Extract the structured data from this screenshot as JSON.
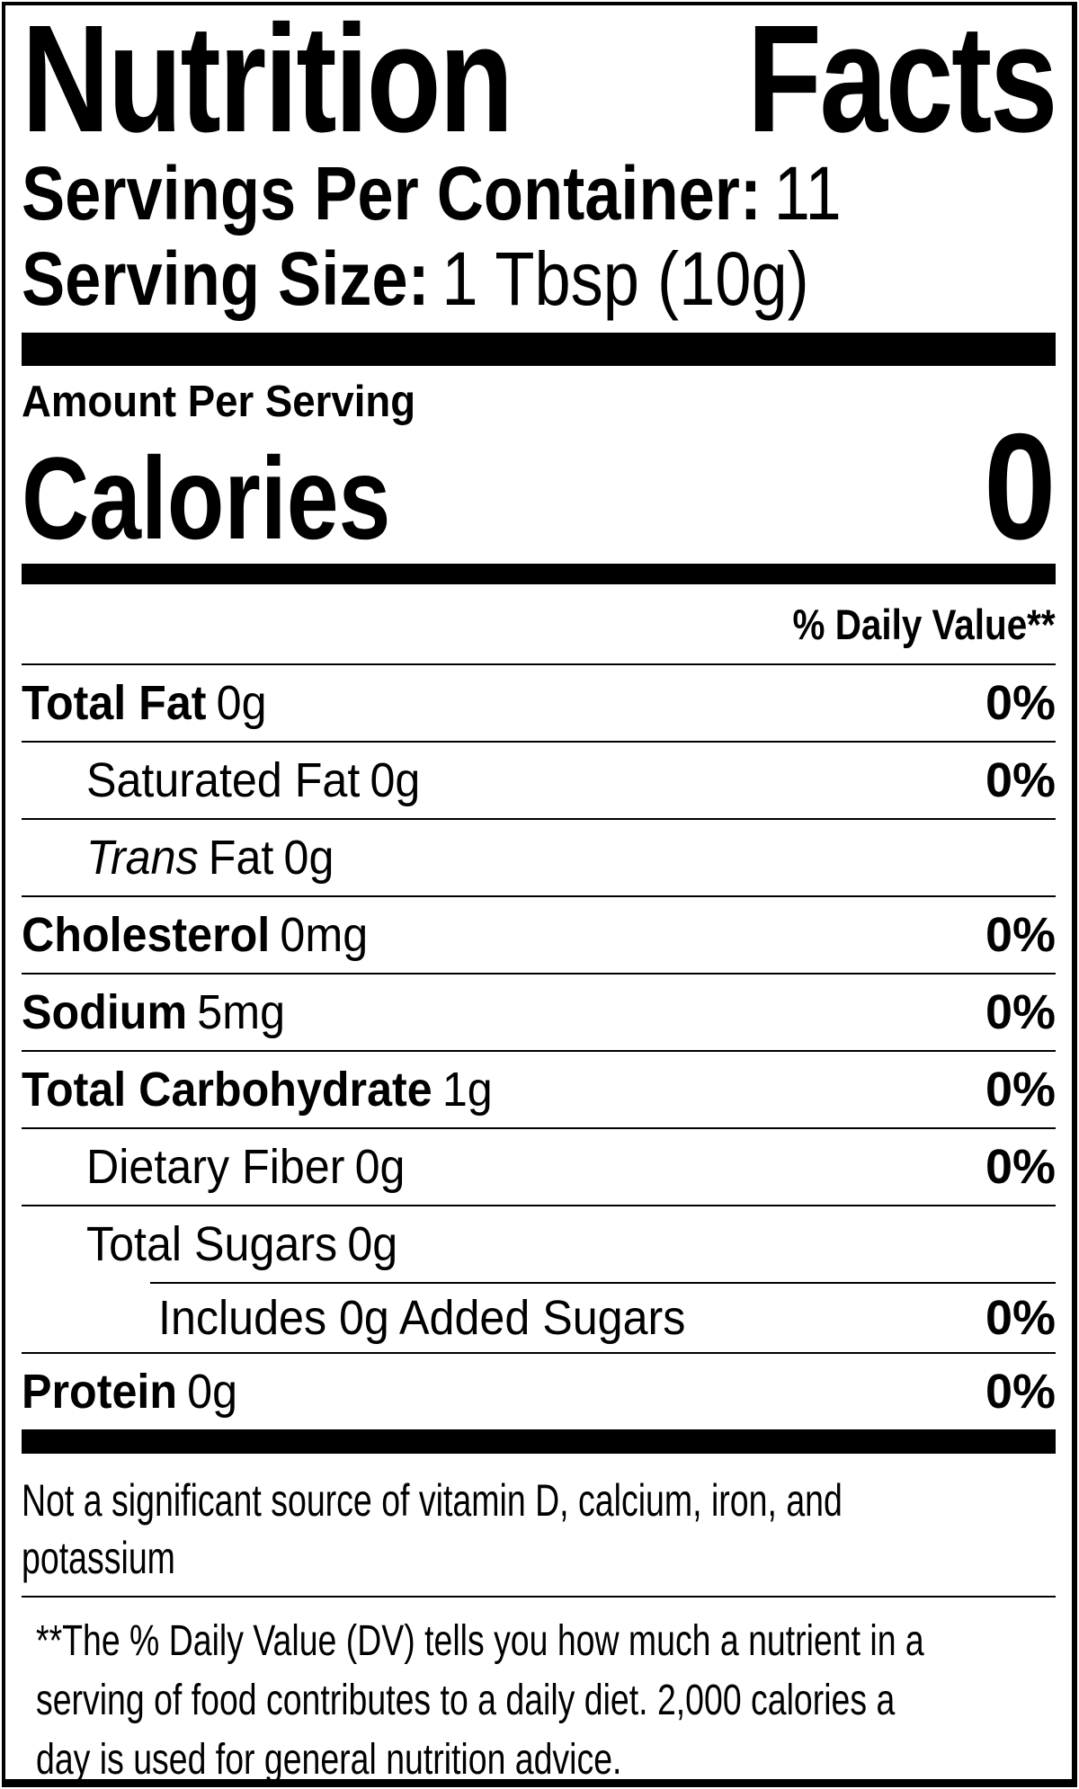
{
  "label": {
    "title_word_1": "Nutrition",
    "title_word_2": "Facts",
    "servings_per_container": {
      "label": "Servings Per Container:",
      "value": "11"
    },
    "serving_size": {
      "label": "Serving Size:",
      "value": "1 Tbsp (10g)"
    },
    "amount_per_serving": "Amount Per Serving",
    "calories": {
      "label": "Calories",
      "value": "0"
    },
    "daily_value_header": "% Daily Value**",
    "nutrients": [
      {
        "label": "Total Fat",
        "amount": "0g",
        "daily_value": "0%"
      },
      {
        "label": "Saturated Fat",
        "amount": "0g",
        "daily_value": "0%"
      },
      {
        "italic_prefix": "Trans",
        "label": "Fat",
        "amount": "0g",
        "daily_value": ""
      },
      {
        "label": "Cholesterol",
        "amount": "0mg",
        "daily_value": "0%"
      },
      {
        "label": "Sodium",
        "amount": "5mg",
        "daily_value": "0%"
      },
      {
        "label": "Total Carbohydrate",
        "amount": "1g",
        "daily_value": "0%"
      },
      {
        "label": "Dietary Fiber",
        "amount": "0g",
        "daily_value": "0%"
      },
      {
        "label": "Total Sugars",
        "amount": "0g",
        "daily_value": ""
      },
      {
        "label": "Includes 0g Added Sugars",
        "amount": "",
        "daily_value": "0%"
      },
      {
        "label": "Protein",
        "amount": "0g",
        "daily_value": "0%"
      }
    ],
    "disclaimer_lines": [
      "Not a significant source of vitamin D, calcium, iron, and",
      "potassium"
    ],
    "footnote_lines": [
      "**The % Daily Value (DV) tells you how much a nutrient in a",
      "serving of food contributes to a daily diet. 2,000 calories a",
      "day is used for general nutrition advice."
    ],
    "colors": {
      "text": "#000000",
      "background": "#ffffff"
    }
  }
}
